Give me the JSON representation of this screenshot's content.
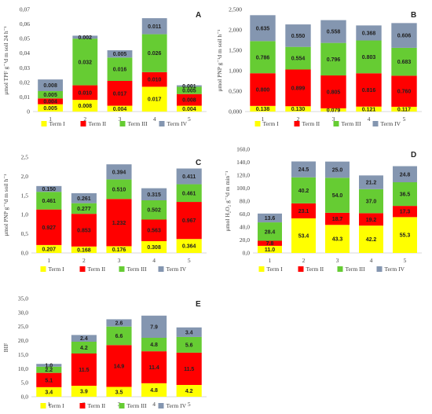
{
  "terms": [
    "Term I",
    "Term II",
    "Term III",
    "Term IV"
  ],
  "colors": [
    "#ffff00",
    "#ff0000",
    "#66cc33",
    "#8496b0"
  ],
  "chart_data": [
    {
      "type": "bar",
      "stacked": true,
      "letter": "A",
      "ylabel": "μmol TPF g⁻¹d m soil 24 h⁻¹",
      "categories": [
        "1",
        "2",
        "3",
        "4",
        "5"
      ],
      "ylim": [
        0,
        0.07
      ],
      "yticks": [
        "0",
        "0,01",
        "0,02",
        "0,03",
        "0,04",
        "0,05",
        "0,06",
        "0,07"
      ],
      "series": [
        {
          "name": "Term I",
          "values": [
            0.005,
            0.008,
            0.004,
            0.017,
            0.004
          ],
          "labels": [
            "0.005",
            "0.008",
            "0.004",
            "0.017",
            "0.004"
          ]
        },
        {
          "name": "Term II",
          "values": [
            0.004,
            0.01,
            0.017,
            0.01,
            0.008
          ],
          "labels": [
            "0.004",
            "0.010",
            "0.017",
            "0.010",
            "0.008"
          ]
        },
        {
          "name": "Term III",
          "values": [
            0.005,
            0.032,
            0.016,
            0.026,
            0.005
          ],
          "labels": [
            "0.005",
            "0.032",
            "0.016",
            "0.026",
            "0.005"
          ]
        },
        {
          "name": "Term IV",
          "values": [
            0.008,
            0.002,
            0.005,
            0.011,
            0.001
          ],
          "labels": [
            "0.008",
            "0.002",
            "0.005",
            "0.011",
            "0.001"
          ]
        }
      ]
    },
    {
      "type": "bar",
      "stacked": true,
      "letter": "B",
      "ylabel": "μmol PNP g⁻¹d m soil h⁻¹",
      "categories": [
        "1",
        "2",
        "3",
        "4",
        "5"
      ],
      "ylim": [
        0,
        2.5
      ],
      "yticks": [
        "0,000",
        "0,500",
        "1,000",
        "1,500",
        "2,000",
        "2,500"
      ],
      "series": [
        {
          "name": "Term I",
          "values": [
            0.138,
            0.13,
            0.079,
            0.121,
            0.117
          ],
          "labels": [
            "0.138",
            "0.130",
            "0.079",
            "0.121",
            "0.117"
          ]
        },
        {
          "name": "Term II",
          "values": [
            0.8,
            0.899,
            0.805,
            0.816,
            0.76
          ],
          "labels": [
            "0.800",
            "0.899",
            "0.805",
            "0.816",
            "0.760"
          ]
        },
        {
          "name": "Term III",
          "values": [
            0.786,
            0.554,
            0.796,
            0.803,
            0.683
          ],
          "labels": [
            "0.786",
            "0.554",
            "0.796",
            "0.803",
            "0.683"
          ]
        },
        {
          "name": "Term IV",
          "values": [
            0.635,
            0.55,
            0.558,
            0.368,
            0.606
          ],
          "labels": [
            "0.635",
            "0.550",
            "0.558",
            "0.368",
            "0.606"
          ]
        }
      ]
    },
    {
      "type": "bar",
      "stacked": true,
      "letter": "C",
      "ylabel": "μmol PNP g⁻¹d m soil h⁻¹",
      "categories": [
        "1",
        "2",
        "3",
        "4",
        "5"
      ],
      "ylim": [
        0,
        2.5
      ],
      "yticks": [
        "0,0",
        "0,5",
        "1,0",
        "1,5",
        "2,0",
        "2,5"
      ],
      "series": [
        {
          "name": "Term I",
          "values": [
            0.207,
            0.168,
            0.176,
            0.308,
            0.364
          ],
          "labels": [
            "0.207",
            "0.168",
            "0.176",
            "0.308",
            "0.364"
          ]
        },
        {
          "name": "Term II",
          "values": [
            0.927,
            0.853,
            1.232,
            0.563,
            0.967
          ],
          "labels": [
            "0.927",
            "0.853",
            "1.232",
            "0.563",
            "0.967"
          ]
        },
        {
          "name": "Term III",
          "values": [
            0.461,
            0.277,
            0.51,
            0.502,
            0.461
          ],
          "labels": [
            "0.461",
            "0.277",
            "0.510",
            "0.502",
            "0.461"
          ]
        },
        {
          "name": "Term IV",
          "values": [
            0.15,
            0.261,
            0.394,
            0.315,
            0.411
          ],
          "labels": [
            "0.150",
            "0.261",
            "0.394",
            "0.315",
            "0.411"
          ]
        }
      ]
    },
    {
      "type": "bar",
      "stacked": true,
      "letter": "D",
      "ylabel": "μmol H₂O₂ g⁻¹d m min⁻¹",
      "categories": [
        "1",
        "2",
        "3",
        "4",
        "5"
      ],
      "ylim": [
        0,
        160
      ],
      "yticks": [
        "0,0",
        "20,0",
        "40,0",
        "60,0",
        "80,0",
        "100,0",
        "120,0",
        "140,0",
        "160,0"
      ],
      "series": [
        {
          "name": "Term I",
          "values": [
            11.0,
            53.4,
            43.3,
            42.2,
            55.3
          ],
          "labels": [
            "11.0",
            "53.4",
            "43.3",
            "42.2",
            "55.3"
          ]
        },
        {
          "name": "Term II",
          "values": [
            7.8,
            23.1,
            18.7,
            19.2,
            17.3
          ],
          "labels": [
            "7.8",
            "23.1",
            "18.7",
            "19.2",
            "17.3"
          ]
        },
        {
          "name": "Term III",
          "values": [
            28.4,
            40.2,
            54.0,
            37.0,
            36.5
          ],
          "labels": [
            "28.4",
            "40.2",
            "54.0",
            "37.0",
            "36.5"
          ]
        },
        {
          "name": "Term IV",
          "values": [
            13.6,
            24.5,
            25.0,
            21.2,
            24.8
          ],
          "labels": [
            "13.6",
            "24.5",
            "25.0",
            "21.2",
            "24.8"
          ]
        }
      ]
    },
    {
      "type": "bar",
      "stacked": true,
      "letter": "E",
      "ylabel": "BIF",
      "categories": [
        "1",
        "2",
        "3",
        "4",
        "5"
      ],
      "ylim": [
        0,
        35
      ],
      "yticks": [
        "0,0",
        "5,0",
        "10,0",
        "15,0",
        "20,0",
        "25,0",
        "30,0",
        "35,0"
      ],
      "series": [
        {
          "name": "Term I",
          "values": [
            3.4,
            3.9,
            3.5,
            4.8,
            4.2
          ],
          "labels": [
            "3.4",
            "3.9",
            "3.5",
            "4.8",
            "4.2"
          ]
        },
        {
          "name": "Term II",
          "values": [
            5.1,
            11.5,
            14.9,
            11.4,
            11.5
          ],
          "labels": [
            "5.1",
            "11.5",
            "14.9",
            "11.4",
            "11.5"
          ]
        },
        {
          "name": "Term III",
          "values": [
            2.2,
            4.2,
            6.6,
            4.8,
            5.6
          ],
          "labels": [
            "2.2",
            "4.2",
            "6.6",
            "4.8",
            "5.6"
          ]
        },
        {
          "name": "Term IV",
          "values": [
            1.0,
            2.4,
            2.6,
            7.9,
            3.4
          ],
          "labels": [
            "1.0",
            "2.4",
            "2.6",
            "7.9",
            "3.4"
          ]
        }
      ]
    }
  ]
}
